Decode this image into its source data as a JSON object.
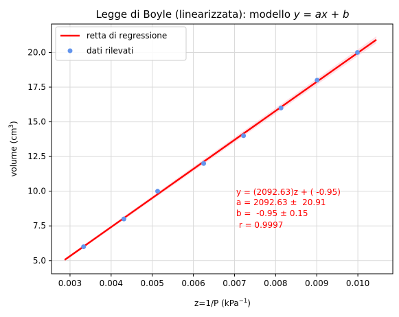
{
  "chart_data": {
    "type": "scatter",
    "title": "Legge di Boyle (linearizzata): modello ",
    "title_math": "y = ax + b",
    "xlabel": "z=1/P (kPa",
    "xlabel_sup": "−1",
    "xlabel_end": ")",
    "ylabel": "volume (cm",
    "ylabel_sup": "3",
    "ylabel_end": ")",
    "xlim": [
      0.00255,
      0.01085
    ],
    "ylim": [
      4.05,
      22.05
    ],
    "x_ticks": [
      0.003,
      0.004,
      0.005,
      0.006,
      0.007,
      0.008,
      0.009,
      0.01
    ],
    "x_tick_labels": [
      "0.003",
      "0.004",
      "0.005",
      "0.006",
      "0.007",
      "0.008",
      "0.009",
      "0.010"
    ],
    "y_ticks": [
      5.0,
      7.5,
      10.0,
      12.5,
      15.0,
      17.5,
      20.0
    ],
    "y_tick_labels": [
      "5.0",
      "7.5",
      "10.0",
      "12.5",
      "15.0",
      "17.5",
      "20.0"
    ],
    "grid": true,
    "legend_position": "upper-left",
    "series": [
      {
        "name": "retta di regressione",
        "kind": "line",
        "color": "#ff0000",
        "x": [
          0.00287,
          0.01045
        ],
        "y": [
          5.05,
          20.92
        ],
        "band": 0.25
      },
      {
        "name": "dati rilevati",
        "kind": "points",
        "color": "#6495ed",
        "x": [
          0.00333,
          0.00431,
          0.00513,
          0.00625,
          0.00722,
          0.00813,
          0.00901,
          0.00999
        ],
        "y": [
          6.0,
          8.0,
          10.0,
          12.0,
          14.0,
          16.0,
          18.0,
          20.0
        ]
      }
    ],
    "annotation": {
      "color": "#ff0000",
      "lines": [
        "y = (2092.63)z + ( -0.95)",
        "a = 2092.63 ±  20.91",
        "b =  -0.95 ± 0.15",
        " r = 0.9997"
      ]
    }
  }
}
